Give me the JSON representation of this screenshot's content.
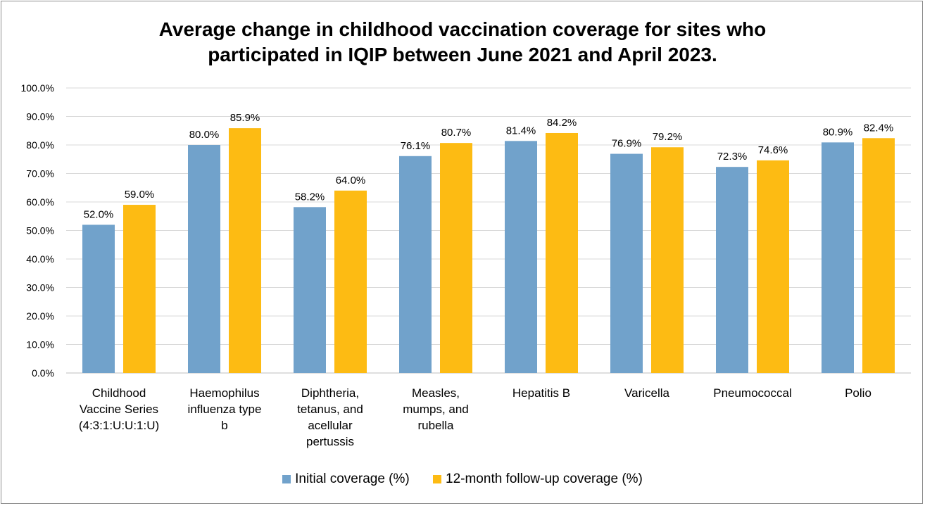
{
  "chart_data": {
    "type": "bar",
    "title_lines": [
      "Average change in childhood vaccination coverage for sites who",
      "participated in IQIP between June 2021 and April 2023."
    ],
    "categories": [
      [
        "Childhood",
        "Vaccine Series",
        "(4:3:1:U:U:1:U)"
      ],
      [
        "Haemophilus",
        "influenza type",
        "b"
      ],
      [
        "Diphtheria,",
        "tetanus, and",
        "acellular",
        "pertussis"
      ],
      [
        "Measles,",
        "mumps, and",
        "rubella"
      ],
      [
        "Hepatitis B"
      ],
      [
        "Varicella"
      ],
      [
        "Pneumococcal"
      ],
      [
        "Polio"
      ]
    ],
    "series": [
      {
        "name": "Initial coverage (%)",
        "color": "#71a2cb",
        "values": [
          52.0,
          80.0,
          58.2,
          76.1,
          81.4,
          76.9,
          72.3,
          80.9
        ],
        "labels": [
          "52.0%",
          "80.0%",
          "58.2%",
          "76.1%",
          "81.4%",
          "76.9%",
          "72.3%",
          "80.9%"
        ]
      },
      {
        "name": "12-month follow-up coverage (%)",
        "color": "#fdbb13",
        "values": [
          59.0,
          85.9,
          64.0,
          80.7,
          84.2,
          79.2,
          74.6,
          82.4
        ],
        "labels": [
          "59.0%",
          "85.9%",
          "64.0%",
          "80.7%",
          "84.2%",
          "79.2%",
          "74.6%",
          "82.4%"
        ]
      }
    ],
    "ylim": [
      0,
      100
    ],
    "yticks": [
      "0.0%",
      "10.0%",
      "20.0%",
      "30.0%",
      "40.0%",
      "50.0%",
      "60.0%",
      "70.0%",
      "80.0%",
      "90.0%",
      "100.0%"
    ],
    "grid": true,
    "legend_position": "bottom",
    "xlabel": "",
    "ylabel": ""
  }
}
